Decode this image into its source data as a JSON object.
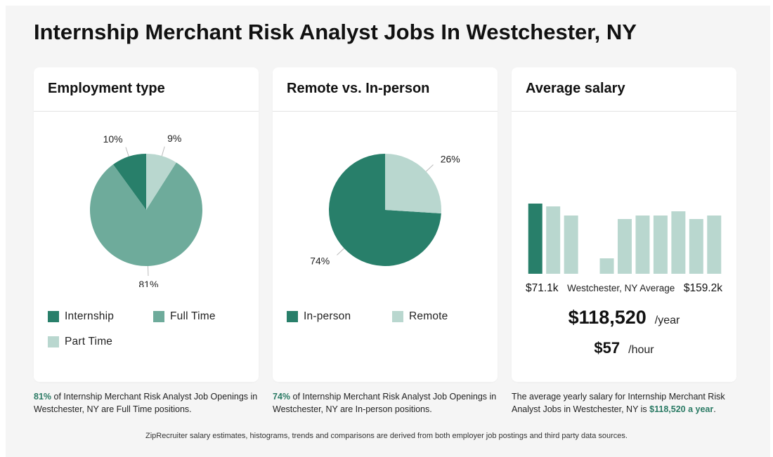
{
  "page": {
    "title": "Internship Merchant Risk Analyst Jobs In Westchester, NY",
    "footer": "ZipRecruiter salary estimates, histograms, trends and comparisons are derived from both employer job postings and third party data sources."
  },
  "colors": {
    "dark": "#287f6a",
    "mid": "#6eab9b",
    "light": "#b9d7cf",
    "background": "#f5f5f5",
    "accent_text": "#2a7a64"
  },
  "employment": {
    "title": "Employment type",
    "caption_highlight": "81%",
    "caption_rest": " of Internship Merchant Risk Analyst Job Openings in Westchester, NY are Full Time positions.",
    "legend": [
      "Internship",
      "Full Time",
      "Part Time"
    ]
  },
  "remote": {
    "title": "Remote vs. In-person",
    "caption_highlight": "74%",
    "caption_rest": " of Internship Merchant Risk Analyst Job Openings in Westchester, NY are In-person positions.",
    "legend": [
      "In-person",
      "Remote"
    ]
  },
  "salary": {
    "title": "Average salary",
    "min_label": "$71.1k",
    "mid_label": "Westchester, NY Average",
    "max_label": "$159.2k",
    "yearly": "$118,520",
    "yearly_unit": "/year",
    "hourly": "$57",
    "hourly_unit": "/hour",
    "caption_prefix": "The average yearly salary for Internship Merchant Risk Analyst Jobs in Westchester, NY is ",
    "caption_highlight": "$118,520 a year",
    "caption_suffix": "."
  },
  "chart_data": [
    {
      "type": "pie",
      "title": "Employment type",
      "series": [
        {
          "name": "Internship",
          "value": 10,
          "label": "10%",
          "color": "#287f6a"
        },
        {
          "name": "Full Time",
          "value": 81,
          "label": "81%",
          "color": "#6eab9b"
        },
        {
          "name": "Part Time",
          "value": 9,
          "label": "9%",
          "color": "#b9d7cf"
        }
      ]
    },
    {
      "type": "pie",
      "title": "Remote vs. In-person",
      "series": [
        {
          "name": "In-person",
          "value": 74,
          "label": "74%",
          "color": "#287f6a"
        },
        {
          "name": "Remote",
          "value": 26,
          "label": "26%",
          "color": "#b9d7cf"
        }
      ]
    },
    {
      "type": "bar",
      "title": "Average salary",
      "xlabel_min": "$71.1k",
      "xlabel_max": "$159.2k",
      "values": [
        100,
        96,
        83,
        0,
        22,
        78,
        83,
        83,
        89,
        78,
        83
      ],
      "highlight_index": 0,
      "ylim": [
        0,
        100
      ]
    }
  ]
}
